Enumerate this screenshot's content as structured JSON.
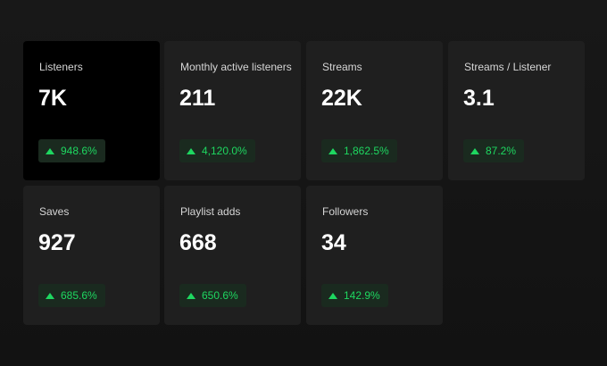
{
  "cards": [
    {
      "label": "Listeners",
      "value": "7K",
      "change": "948.6%"
    },
    {
      "label": "Monthly active listeners",
      "value": "211",
      "change": "4,120.0%"
    },
    {
      "label": "Streams",
      "value": "22K",
      "change": "1,862.5%"
    },
    {
      "label": "Streams / Listener",
      "value": "3.1",
      "change": "87.2%"
    },
    {
      "label": "Saves",
      "value": "927",
      "change": "685.6%"
    },
    {
      "label": "Playlist adds",
      "value": "668",
      "change": "650.6%"
    },
    {
      "label": "Followers",
      "value": "34",
      "change": "142.9%"
    }
  ]
}
